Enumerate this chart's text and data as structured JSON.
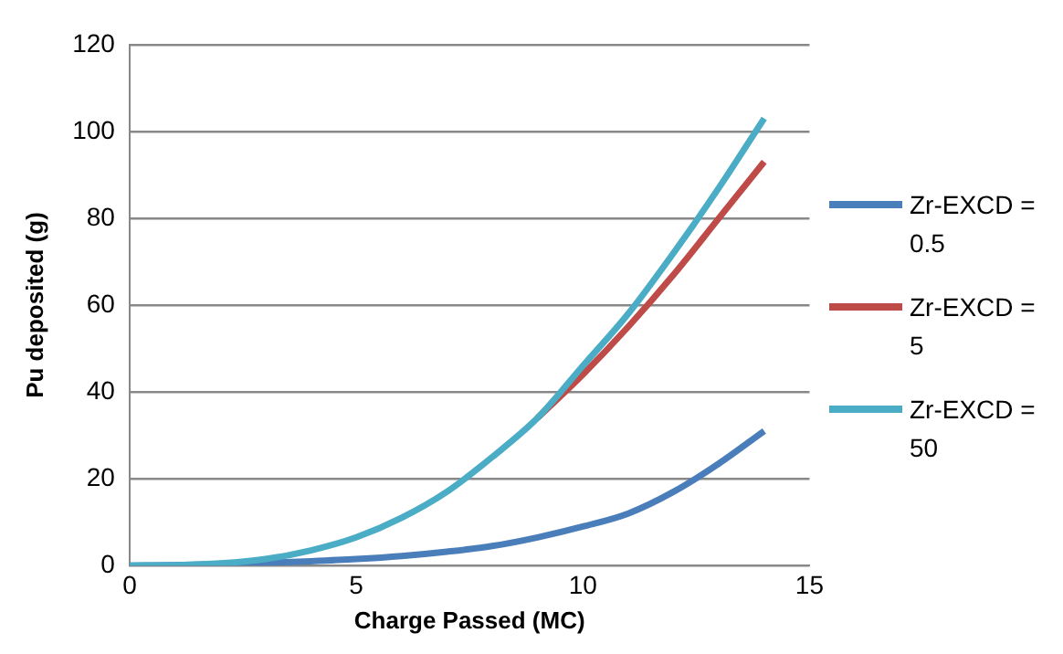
{
  "chart_data": {
    "type": "line",
    "xlabel": "Charge Passed (MC)",
    "ylabel": "Pu deposited (g)",
    "x": [
      0,
      1,
      2,
      3,
      4,
      5,
      6,
      7,
      8,
      9,
      10,
      11,
      12,
      13,
      14
    ],
    "xlim": [
      0,
      15
    ],
    "xticks": [
      0,
      5,
      10,
      15
    ],
    "ylim": [
      0,
      120
    ],
    "yticks": [
      0,
      20,
      40,
      60,
      80,
      100,
      120
    ],
    "grid": "y",
    "legend": "right",
    "marker": "none",
    "line_style": "solid",
    "series": [
      {
        "name": "Zr-EXCD = 0.5",
        "color": "#4a7ebb",
        "values": [
          0,
          0.1,
          0.3,
          0.6,
          1,
          1.5,
          2.2,
          3.2,
          4.5,
          6.5,
          9,
          12,
          17,
          23.5,
          31
        ]
      },
      {
        "name": "Zr-EXCD = 5",
        "color": "#be4b48",
        "values": [
          null,
          null,
          null,
          null,
          null,
          null,
          null,
          null,
          null,
          34,
          44,
          55,
          67,
          80,
          93
        ]
      },
      {
        "name": "Zr-EXCD = 50",
        "color": "#4bacc6",
        "values": [
          0,
          0.1,
          0.5,
          1.5,
          3.5,
          6.5,
          11,
          17,
          25,
          34,
          46,
          58,
          72,
          87,
          103
        ]
      }
    ]
  }
}
